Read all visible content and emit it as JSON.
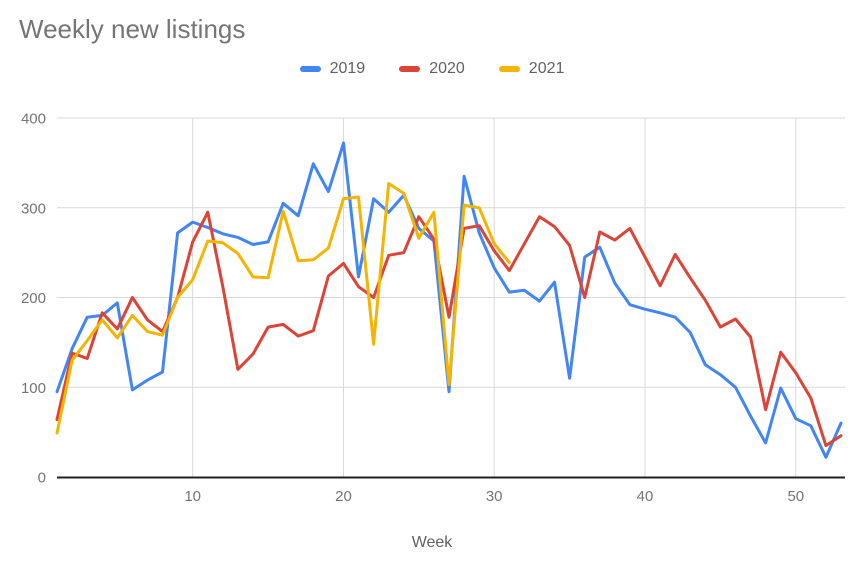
{
  "title": "Weekly new listings",
  "legend": {
    "items": [
      {
        "label": "2019"
      },
      {
        "label": "2020"
      },
      {
        "label": "2021"
      }
    ]
  },
  "chart_data": {
    "type": "line",
    "title": "Weekly new listings",
    "xlabel": "Week",
    "ylabel": "",
    "xlim": [
      1,
      53
    ],
    "ylim": [
      0,
      400
    ],
    "xticks": [
      10,
      20,
      30,
      40,
      50
    ],
    "yticks": [
      0,
      100,
      200,
      300,
      400
    ],
    "grid": "both",
    "legend_position": "top",
    "gridline_color": "#d9d9d9",
    "axis_line_color": "#212121",
    "tick_label_color": "#757575",
    "series": [
      {
        "name": "2019",
        "color": "#4285f4",
        "start_week": 1,
        "values": [
          95,
          143,
          178,
          180,
          194,
          97,
          108,
          117,
          272,
          284,
          278,
          271,
          267,
          259,
          262,
          305,
          291,
          349,
          318,
          372,
          223,
          310,
          295,
          314,
          277,
          263,
          95,
          335,
          272,
          233,
          206,
          208,
          196,
          217,
          110,
          245,
          256,
          216,
          192,
          187,
          183,
          178,
          161,
          125,
          114,
          100,
          68,
          38,
          99,
          65,
          57,
          22,
          60
        ]
      },
      {
        "name": "2020",
        "color": "#db4437",
        "start_week": 1,
        "values": [
          64,
          138,
          132,
          183,
          165,
          200,
          175,
          162,
          200,
          262,
          295,
          212,
          120,
          137,
          167,
          170,
          157,
          163,
          224,
          238,
          212,
          200,
          247,
          250,
          290,
          265,
          178,
          277,
          280,
          252,
          230,
          260,
          290,
          279,
          258,
          200,
          273,
          264,
          277,
          245,
          213,
          248,
          222,
          197,
          167,
          176,
          156,
          75,
          139,
          116,
          88,
          35,
          46
        ]
      },
      {
        "name": "2021",
        "color": "#f4b400",
        "start_week": 1,
        "values": [
          49,
          130,
          152,
          175,
          155,
          180,
          162,
          158,
          200,
          220,
          263,
          261,
          249,
          223,
          222,
          296,
          241,
          242,
          255,
          310,
          312,
          148,
          327,
          316,
          266,
          295,
          103,
          303,
          300,
          260,
          239
        ]
      }
    ]
  }
}
